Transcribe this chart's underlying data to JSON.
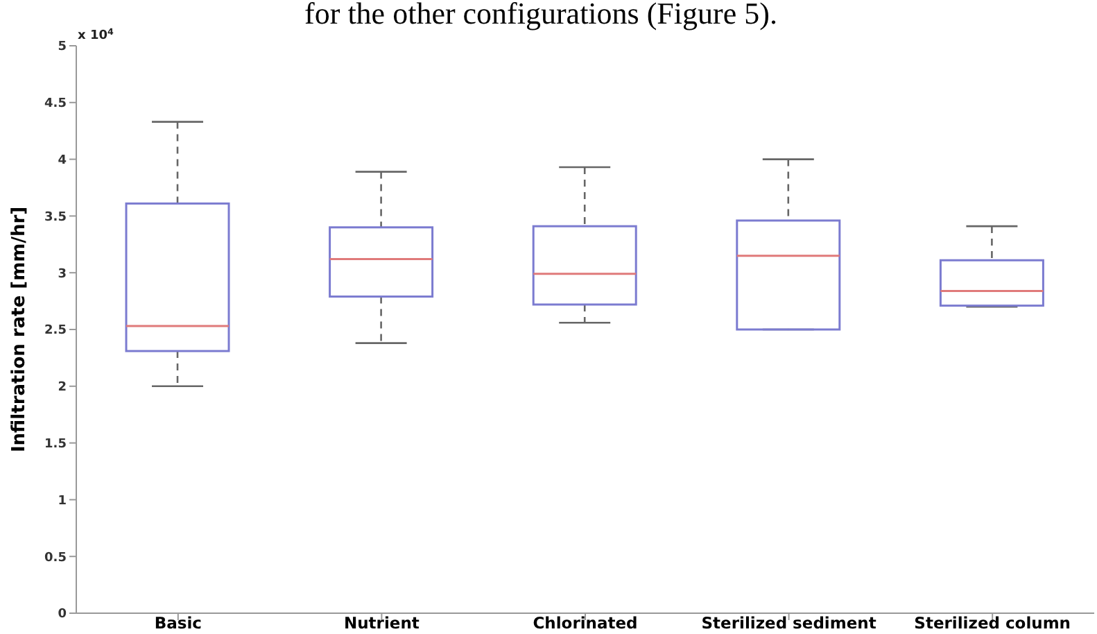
{
  "chart_data": {
    "type": "box",
    "ylabel": "Infiltration rate [mm/hr]",
    "annotations": [
      "for the other configurations (Figure 5).",
      "x 10$^{4}$"
    ],
    "categories": [
      "Basic",
      "Nutrient",
      "Chlorinated",
      "Sterilized sediment",
      "Sterilized column"
    ],
    "series": [
      {
        "color": "#7b7bd0",
        "boxes": [
          {
            "low": 2.0,
            "q1": 2.31,
            "median": 2.53,
            "q3": 3.61,
            "high": 4.33
          },
          {
            "low": 2.38,
            "q1": 2.79,
            "median": 3.12,
            "q3": 3.4,
            "high": 3.89
          },
          {
            "low": 2.56,
            "q1": 2.72,
            "median": 2.99,
            "q3": 3.41,
            "high": 3.93
          },
          {
            "low": 2.5,
            "q1": 2.5,
            "median": 3.15,
            "q3": 3.46,
            "high": 4.0
          },
          {
            "low": 2.7,
            "q1": 2.71,
            "median": 2.84,
            "q3": 3.11,
            "high": 3.41
          }
        ]
      }
    ],
    "ylim": [
      0,
      5
    ],
    "yticks": [
      0,
      0.5,
      1,
      1.5,
      2,
      2.5,
      3,
      3.5,
      4,
      4.5,
      5
    ],
    "grid": false,
    "legend": false
  }
}
